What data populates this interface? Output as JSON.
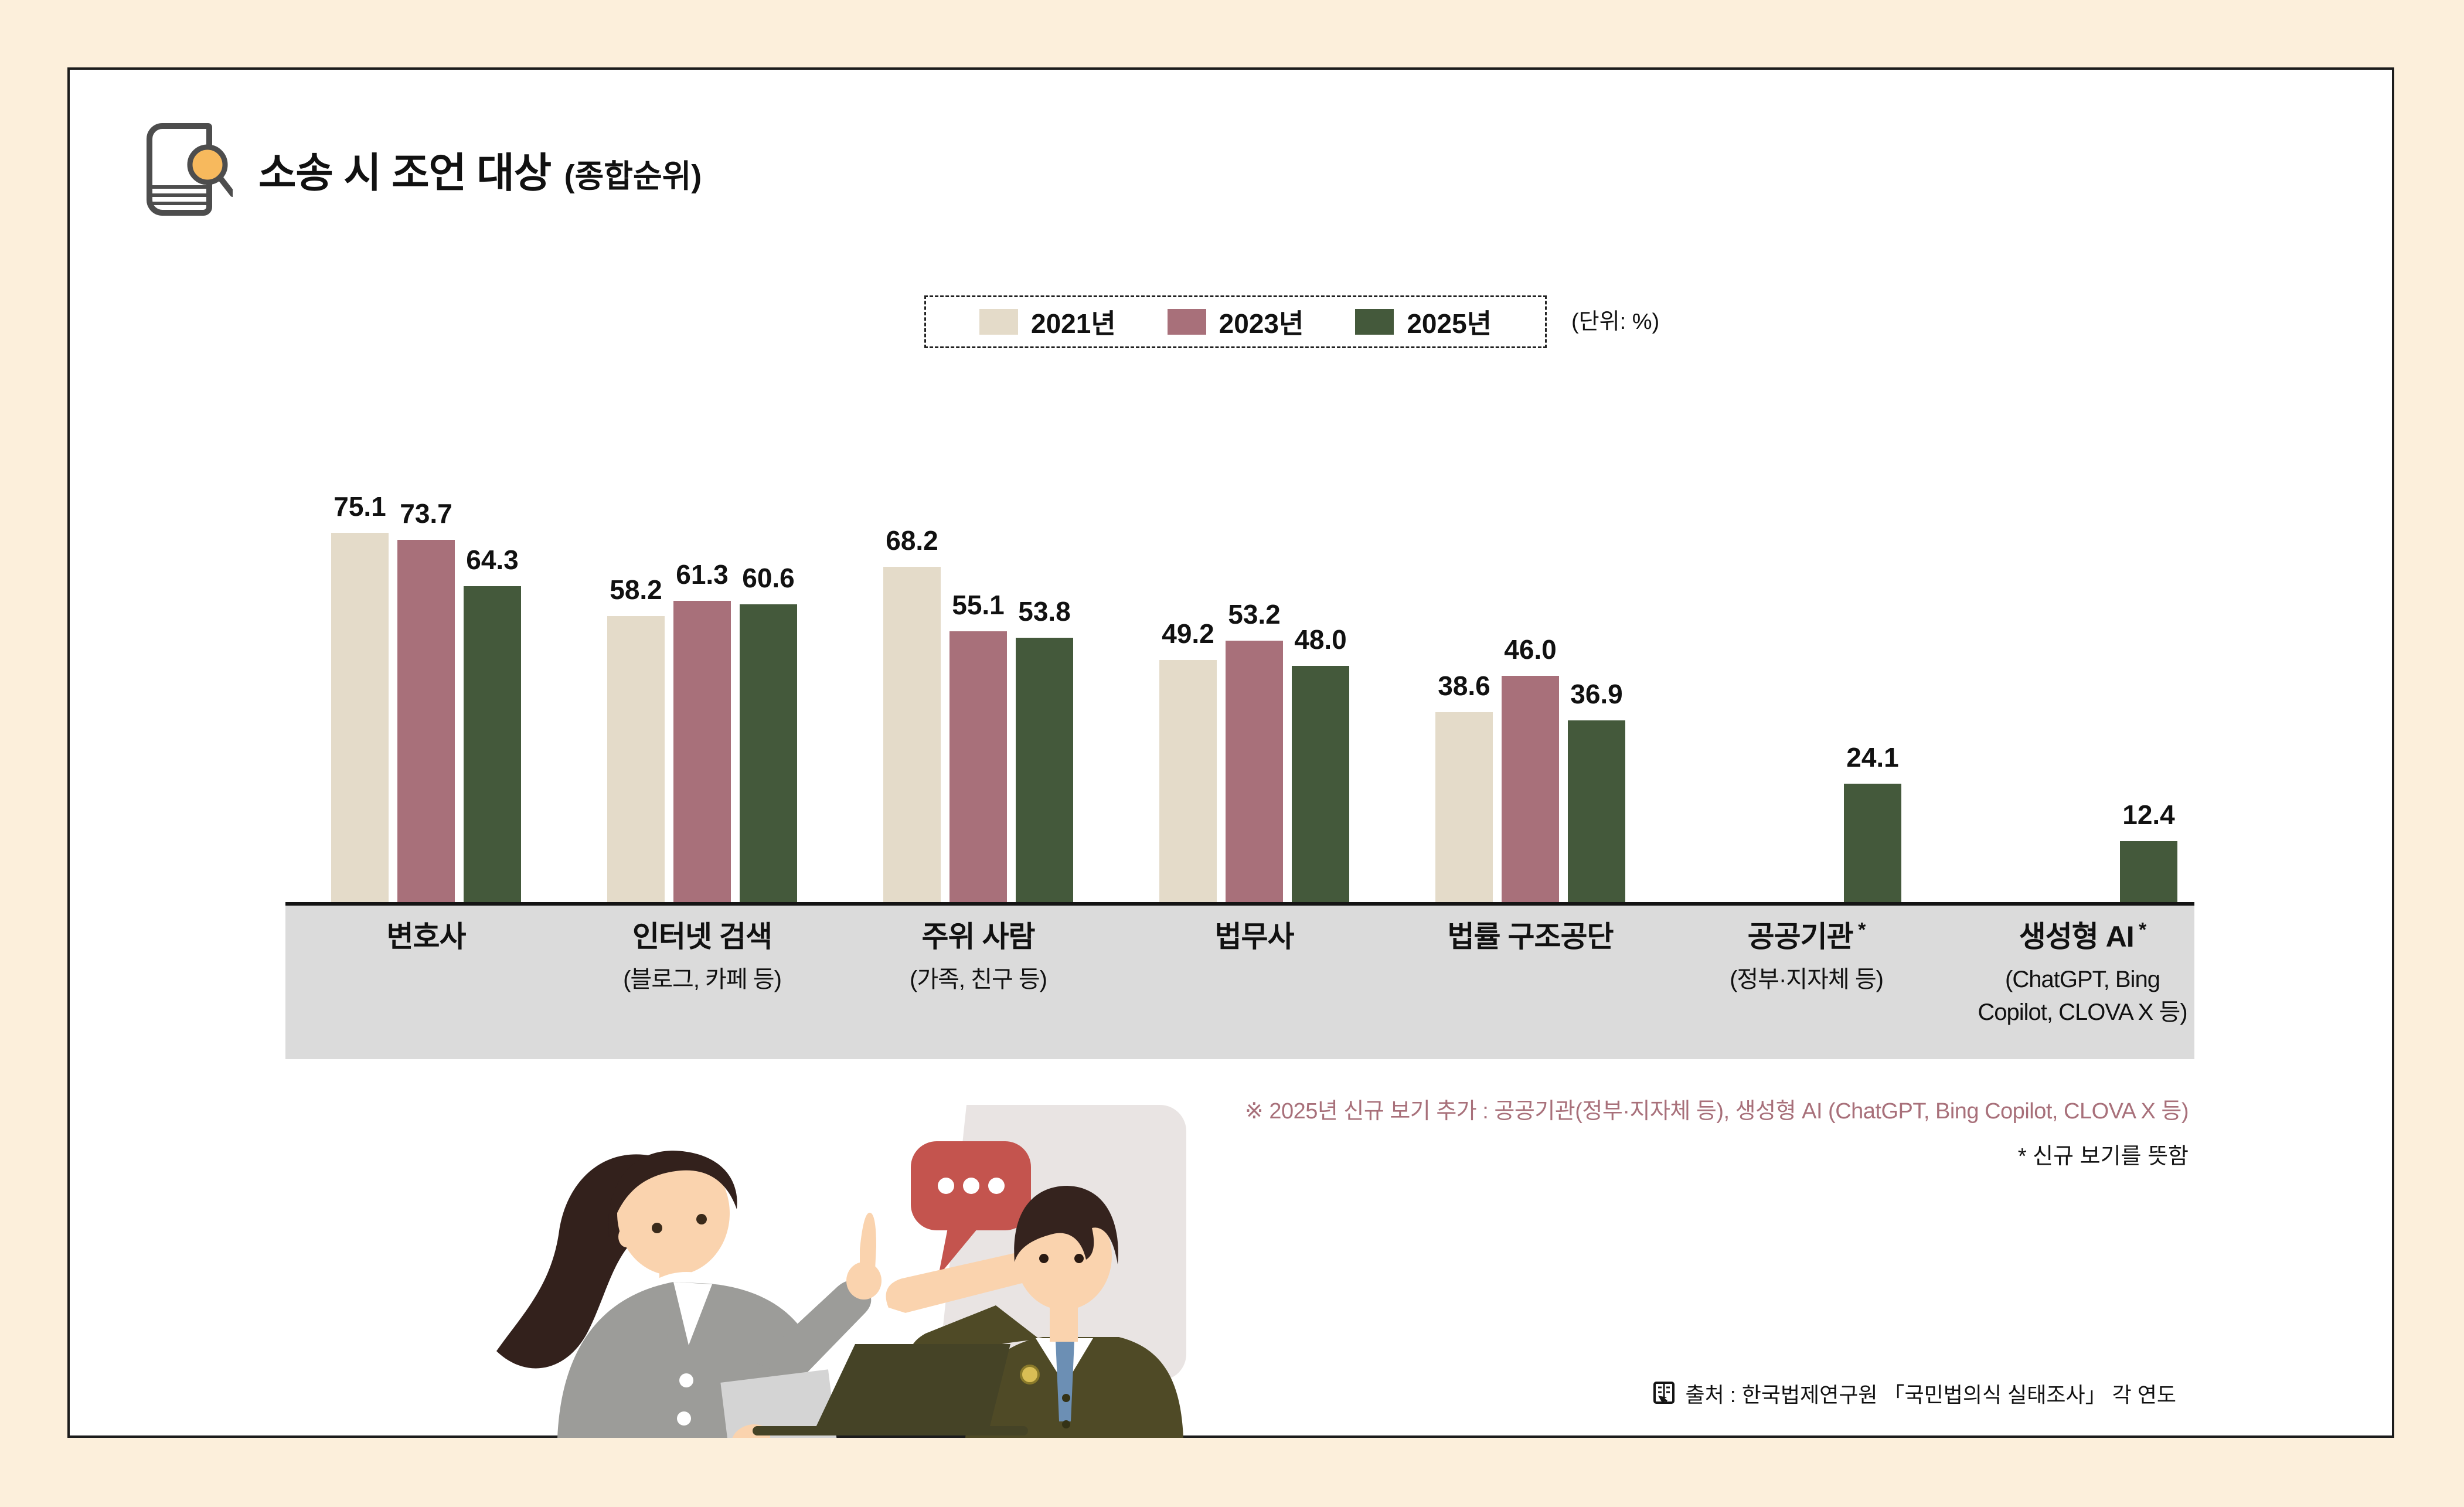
{
  "title": {
    "text": "소송 시 조언 대상",
    "suffix": "(종합순위)"
  },
  "legend": {
    "unit_note": "(단위: %)",
    "items": [
      {
        "label": "2021년",
        "color": "#E4DBC9"
      },
      {
        "label": "2023년",
        "color": "#A8707A"
      },
      {
        "label": "2025년",
        "color": "#44593B"
      }
    ]
  },
  "asterisk_mark": "*",
  "chart_data": {
    "type": "bar",
    "unit": "%",
    "title": "소송 시 조언 대상 (종합순위)",
    "legend_position": "top-center",
    "grid": false,
    "ylim": [
      0,
      80
    ],
    "categories": [
      {
        "label": "변호사",
        "sub": "",
        "asterisk": false
      },
      {
        "label": "인터넷 검색",
        "sub": "(블로그, 카페 등)",
        "asterisk": false
      },
      {
        "label": "주위 사람",
        "sub": "(가족, 친구 등)",
        "asterisk": false
      },
      {
        "label": "법무사",
        "sub": "",
        "asterisk": false
      },
      {
        "label": "법률 구조공단",
        "sub": "",
        "asterisk": false
      },
      {
        "label": "공공기관",
        "sub": "(정부·지자체 등)",
        "asterisk": true
      },
      {
        "label": "생성형 AI",
        "sub": "(ChatGPT, Bing Copilot, CLOVA X 등)",
        "asterisk": true
      }
    ],
    "series": [
      {
        "name": "2021년",
        "color": "#E4DBC9",
        "values": [
          "75.1",
          "58.2",
          "68.2",
          "49.2",
          "38.6",
          null,
          null
        ]
      },
      {
        "name": "2023년",
        "color": "#A8707A",
        "values": [
          "73.7",
          "61.3",
          "55.1",
          "53.2",
          "46.0",
          null,
          null
        ]
      },
      {
        "name": "2025년",
        "color": "#44593B",
        "values": [
          "64.3",
          "60.6",
          "53.8",
          "48.0",
          "36.9",
          "24.1",
          "12.4"
        ]
      }
    ]
  },
  "footnotes": {
    "new_items_note": "※ 2025년 신규 보기 추가 : 공공기관(정부·지자체 등), 생성형 AI (ChatGPT, Bing Copilot, CLOVA X 등)",
    "asterisk_note": "*  신규 보기를 뜻함"
  },
  "source": "출처 : 한국법제연구원 「국민법의식 실태조사」 각 연도",
  "colors": {
    "page_background": "#FCEFDB",
    "panel_background": "#FFFFFF",
    "panel_border": "#1C1C1C",
    "axis": "#141414",
    "x_band": "#DBDBDB",
    "footnote_accent": "#A8707A",
    "icon_lens": "#F7B95D"
  }
}
